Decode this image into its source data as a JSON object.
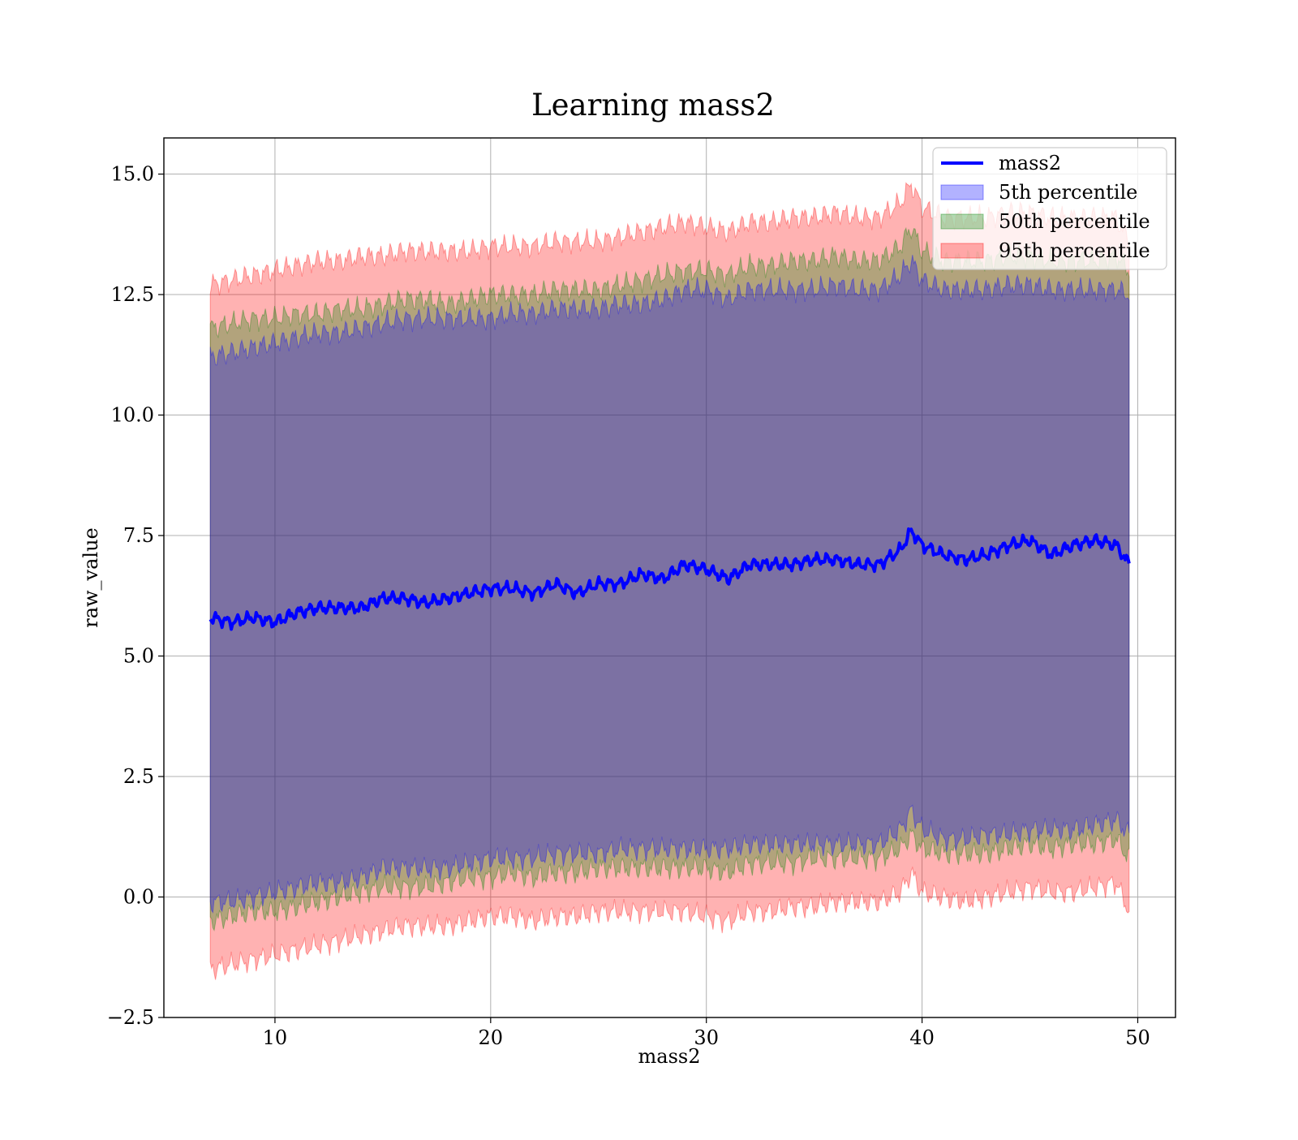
{
  "chart_data": {
    "type": "area",
    "title": "Learning mass2",
    "xlabel": "mass2",
    "ylabel": "raw_value",
    "xlim": [
      4.85,
      51.75
    ],
    "ylim": [
      -2.5,
      15.75
    ],
    "xticks": [
      {
        "value": 10,
        "label": "10"
      },
      {
        "value": 20,
        "label": "20"
      },
      {
        "value": 30,
        "label": "30"
      },
      {
        "value": 40,
        "label": "40"
      },
      {
        "value": 50,
        "label": "50"
      }
    ],
    "yticks": [
      {
        "value": -2.5,
        "label": "−2.5"
      },
      {
        "value": 0.0,
        "label": "0.0"
      },
      {
        "value": 2.5,
        "label": "2.5"
      },
      {
        "value": 5.0,
        "label": "5.0"
      },
      {
        "value": 7.5,
        "label": "7.5"
      },
      {
        "value": 10.0,
        "label": "10.0"
      },
      {
        "value": 12.5,
        "label": "12.5"
      },
      {
        "value": 15.0,
        "label": "15.0"
      }
    ],
    "grid": true,
    "legend_position": "top-right",
    "x": [
      7.0,
      8.0,
      9.0,
      10.0,
      11.0,
      12.0,
      13.0,
      14.0,
      15.0,
      16.0,
      17.0,
      18.0,
      19.0,
      20.0,
      21.0,
      22.0,
      23.0,
      24.0,
      25.0,
      26.0,
      27.0,
      28.0,
      29.0,
      30.0,
      31.0,
      32.0,
      33.0,
      34.0,
      35.0,
      36.0,
      37.0,
      38.0,
      39.0,
      39.5,
      40.0,
      41.0,
      42.0,
      43.0,
      44.0,
      45.0,
      46.0,
      47.0,
      48.0,
      49.0,
      49.6
    ],
    "series": [
      {
        "name": "mass2",
        "kind": "line",
        "color": "#0000ff",
        "values": [
          5.8,
          5.7,
          5.8,
          5.7,
          5.9,
          6.0,
          6.0,
          6.0,
          6.2,
          6.2,
          6.1,
          6.2,
          6.3,
          6.4,
          6.4,
          6.3,
          6.5,
          6.3,
          6.5,
          6.5,
          6.7,
          6.6,
          6.9,
          6.8,
          6.6,
          6.9,
          6.9,
          6.9,
          7.0,
          7.0,
          6.9,
          6.9,
          7.2,
          7.6,
          7.3,
          7.1,
          7.0,
          7.1,
          7.3,
          7.4,
          7.1,
          7.3,
          7.4,
          7.3,
          6.9
        ]
      },
      {
        "name": "5th percentile",
        "kind": "band",
        "color": "#0000ff",
        "lower": [
          -0.1,
          -0.1,
          0.0,
          0.1,
          0.2,
          0.3,
          0.3,
          0.4,
          0.6,
          0.6,
          0.6,
          0.6,
          0.7,
          0.8,
          0.8,
          0.8,
          0.9,
          0.9,
          0.9,
          1.0,
          1.0,
          1.0,
          1.0,
          1.0,
          1.0,
          1.1,
          1.1,
          1.1,
          1.1,
          1.1,
          1.1,
          1.1,
          1.4,
          1.8,
          1.4,
          1.2,
          1.2,
          1.3,
          1.3,
          1.4,
          1.4,
          1.4,
          1.5,
          1.6,
          1.3
        ],
        "upper": [
          11.2,
          11.3,
          11.4,
          11.5,
          11.6,
          11.7,
          11.7,
          11.8,
          11.9,
          12.0,
          12.0,
          12.0,
          12.0,
          12.0,
          12.1,
          12.1,
          12.2,
          12.2,
          12.2,
          12.3,
          12.3,
          12.4,
          12.6,
          12.6,
          12.4,
          12.6,
          12.6,
          12.6,
          12.6,
          12.7,
          12.6,
          12.6,
          12.9,
          13.2,
          12.8,
          12.6,
          12.6,
          12.6,
          12.7,
          12.7,
          12.6,
          12.6,
          12.6,
          12.6,
          12.5
        ]
      },
      {
        "name": "50th percentile",
        "kind": "band",
        "color": "#008000",
        "lower": [
          -0.5,
          -0.4,
          -0.3,
          -0.3,
          -0.2,
          -0.1,
          0.0,
          0.1,
          0.2,
          0.2,
          0.2,
          0.3,
          0.4,
          0.4,
          0.5,
          0.4,
          0.5,
          0.5,
          0.6,
          0.6,
          0.6,
          0.6,
          0.6,
          0.6,
          0.5,
          0.7,
          0.7,
          0.7,
          0.8,
          0.8,
          0.8,
          0.8,
          1.0,
          1.3,
          1.0,
          0.9,
          0.9,
          0.9,
          1.0,
          1.1,
          1.0,
          1.1,
          1.1,
          1.2,
          0.8
        ],
        "upper": [
          11.8,
          11.9,
          12.0,
          12.0,
          12.1,
          12.1,
          12.2,
          12.2,
          12.3,
          12.4,
          12.4,
          12.3,
          12.4,
          12.5,
          12.5,
          12.5,
          12.6,
          12.6,
          12.6,
          12.7,
          12.8,
          12.9,
          13.0,
          13.0,
          12.9,
          13.1,
          13.1,
          13.2,
          13.2,
          13.3,
          13.2,
          13.2,
          13.5,
          13.9,
          13.4,
          13.2,
          13.2,
          13.2,
          13.3,
          13.3,
          13.2,
          13.2,
          13.2,
          13.3,
          13.0
        ]
      },
      {
        "name": "95th percentile",
        "kind": "band",
        "color": "#ff0000",
        "lower": [
          -1.5,
          -1.4,
          -1.3,
          -1.2,
          -1.1,
          -1.0,
          -0.9,
          -0.8,
          -0.7,
          -0.6,
          -0.6,
          -0.6,
          -0.5,
          -0.4,
          -0.4,
          -0.5,
          -0.4,
          -0.4,
          -0.3,
          -0.3,
          -0.3,
          -0.3,
          -0.3,
          -0.4,
          -0.5,
          -0.3,
          -0.3,
          -0.2,
          -0.2,
          -0.1,
          -0.1,
          -0.1,
          0.1,
          0.5,
          0.1,
          0.0,
          -0.1,
          0.0,
          0.1,
          0.2,
          0.1,
          0.1,
          0.2,
          0.3,
          -0.3
        ],
        "upper": [
          12.7,
          12.8,
          12.9,
          13.0,
          13.1,
          13.2,
          13.2,
          13.3,
          13.3,
          13.4,
          13.4,
          13.4,
          13.4,
          13.5,
          13.5,
          13.5,
          13.6,
          13.6,
          13.6,
          13.7,
          13.8,
          13.9,
          14.0,
          13.9,
          13.8,
          14.0,
          14.0,
          14.1,
          14.1,
          14.2,
          14.1,
          14.1,
          14.4,
          14.8,
          14.3,
          14.1,
          14.1,
          14.1,
          14.2,
          14.2,
          14.1,
          14.1,
          14.1,
          14.1,
          13.6
        ]
      }
    ]
  }
}
